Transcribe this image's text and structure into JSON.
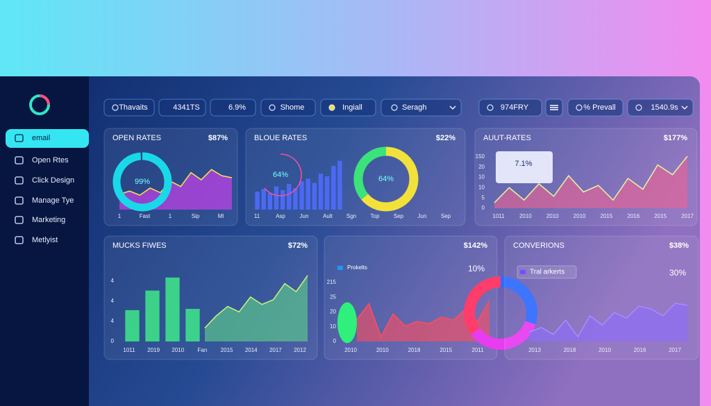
{
  "sidebar": {
    "items": [
      "email",
      "Open Rtes",
      "Click Design",
      "Manage Tye",
      "Marketing",
      "Metlyist"
    ]
  },
  "toolbar": {
    "items": [
      "Thavaits",
      "4341TS",
      "6.9%",
      "Shome",
      "Ingiall",
      "Seragh",
      "974FRY",
      "% Prevall",
      "1540.9s"
    ]
  },
  "panels": [
    {
      "title": "OPEN RATES",
      "value": "$87%",
      "x_labels": [
        "1",
        "Fast",
        "1",
        "Sip",
        "Ml"
      ],
      "charts": [
        {
          "type": "area",
          "color": "#e040fb",
          "stroke": "#f4e04d",
          "ylim": [
            0,
            100
          ],
          "values": [
            30,
            36,
            28,
            42,
            33,
            55,
            45,
            72,
            58,
            78,
            66,
            62
          ]
        },
        {
          "type": "donut",
          "label": "99%",
          "colors": [
            "#19d9e8"
          ],
          "values": [
            99
          ]
        }
      ]
    },
    {
      "title": "BLOUE RATES",
      "value": "$22%",
      "x_labels": [
        "11",
        "Asp",
        "Jun",
        "Ault",
        "Sgn",
        "Top",
        "Sep",
        "Jun",
        "Sep"
      ],
      "charts": [
        {
          "type": "bars",
          "color": "#4f6bff",
          "ylim": [
            0,
            100
          ],
          "values": [
            35,
            40,
            32,
            45,
            38,
            50,
            42,
            55,
            60,
            52,
            70,
            65,
            85,
            95
          ]
        },
        {
          "type": "ring",
          "label": "64%",
          "colors": [
            "#ff4f9a"
          ],
          "values": [
            64
          ]
        },
        {
          "type": "donut",
          "label": "64%",
          "colors": [
            "#f2e13a",
            "#3be37a"
          ],
          "values": [
            64,
            36
          ]
        }
      ]
    },
    {
      "title": "AUUT-RATES",
      "value": "$177%",
      "tooltip": "7.1%",
      "y_labels": [
        "150",
        "20",
        "10",
        "10",
        "5",
        "0"
      ],
      "x_labels": [
        "1011",
        "2010",
        "2010",
        "2010",
        "2015",
        "2016",
        "2015",
        "2017"
      ],
      "charts": [
        {
          "type": "area",
          "color": "#f06292",
          "stroke": "#e0f0a0",
          "ylim": [
            0,
            100
          ],
          "values": [
            10,
            38,
            15,
            45,
            22,
            60,
            30,
            42,
            15,
            55,
            35,
            80,
            62,
            96
          ]
        }
      ]
    },
    {
      "title": "MUCKS FIWES",
      "value": "$72%",
      "y_labels": [
        "4",
        "4",
        "4",
        "0"
      ],
      "x_labels": [
        "1011",
        "2019",
        "2010",
        "Fan",
        "2015",
        "2014",
        "2017",
        "2012"
      ],
      "charts": [
        {
          "type": "bars",
          "color": "#3ee08a",
          "ylim": [
            0,
            100
          ],
          "values": [
            48,
            78,
            98,
            50
          ]
        },
        {
          "type": "area",
          "color": "#5fd68a",
          "stroke": "#c6f07a",
          "ylim": [
            0,
            100
          ],
          "values": [
            20,
            38,
            52,
            44,
            66,
            55,
            62,
            86,
            74,
            98
          ]
        }
      ]
    },
    {
      "value": "$142%",
      "legend": {
        "label": "Prokelts",
        "color": "#2196f3"
      },
      "aside": "10%",
      "y_labels": [
        "215",
        "25",
        "20",
        "10",
        "0"
      ],
      "x_labels": [
        "2010",
        "2010",
        "2018",
        "2015",
        "2011"
      ],
      "charts": [
        {
          "type": "blob",
          "color": "#2ef07a"
        },
        {
          "type": "area",
          "color": "#ff4d5e",
          "stroke": "#ff4d5e",
          "ylim": [
            0,
            100
          ],
          "values": [
            50,
            85,
            10,
            62,
            35,
            45,
            40,
            55,
            48,
            72,
            45,
            92
          ]
        },
        {
          "type": "donut",
          "colors": [
            "#2f6bff",
            "#e83cf0",
            "#ff3d6a"
          ],
          "values": [
            30,
            35,
            35
          ]
        }
      ]
    },
    {
      "title": "CONVERIONS",
      "value": "$38%",
      "legend": {
        "label": "Tral arkerts",
        "color": "#7c4dff"
      },
      "aside": "30%",
      "x_labels": [
        "2013",
        "2018",
        "2010",
        "2016",
        "2017"
      ],
      "charts": [
        {
          "type": "area",
          "color": "#8e6cff",
          "stroke": "#a78bff",
          "ylim": [
            0,
            100
          ],
          "values": [
            20,
            30,
            15,
            46,
            10,
            55,
            35,
            62,
            50,
            76,
            70,
            55,
            82,
            78
          ]
        }
      ]
    }
  ]
}
